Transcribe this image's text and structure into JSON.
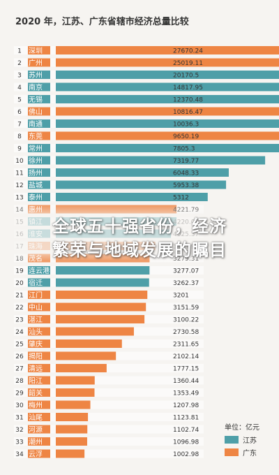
{
  "colors": {
    "jiangsu": "#4e9fa8",
    "guangdong": "#ee8544"
  },
  "banner": {
    "line1": "全球五十强省份，经济",
    "line2": "繁荣与地域发展的瞩目"
  },
  "chart_data": {
    "type": "bar",
    "orientation": "horizontal",
    "title": "2020 年，江苏、广东省辖市经济总量比较",
    "unit": "单位：亿元",
    "legend": [
      {
        "name": "江苏",
        "color": "#4e9fa8",
        "province": "jiangsu"
      },
      {
        "name": "广东",
        "color": "#ee8544",
        "province": "guangdong"
      }
    ],
    "legend_position": "bottom-right",
    "xlim": [
      0,
      40000
    ],
    "grid": false,
    "rows": [
      {
        "rank": "1",
        "city": "深圳",
        "value": 27670.24,
        "value_label": "27670.24",
        "province": "guangdong"
      },
      {
        "rank": "2",
        "city": "广州",
        "value": 25019.11,
        "value_label": "25019.11",
        "province": "guangdong"
      },
      {
        "rank": "3",
        "city": "苏州",
        "value": 20170.5,
        "value_label": "20170.5",
        "province": "jiangsu"
      },
      {
        "rank": "4",
        "city": "南京",
        "value": 14817.95,
        "value_label": "14817.95",
        "province": "jiangsu"
      },
      {
        "rank": "5",
        "city": "无锡",
        "value": 12370.48,
        "value_label": "12370.48",
        "province": "jiangsu"
      },
      {
        "rank": "6",
        "city": "佛山",
        "value": 10816.47,
        "value_label": "10816.47",
        "province": "guangdong"
      },
      {
        "rank": "7",
        "city": "南通",
        "value": 10036.3,
        "value_label": "10036.3",
        "province": "jiangsu"
      },
      {
        "rank": "8",
        "city": "东莞",
        "value": 9650.19,
        "value_label": "9650.19",
        "province": "guangdong"
      },
      {
        "rank": "9",
        "city": "常州",
        "value": 7805.3,
        "value_label": "7805.3",
        "province": "jiangsu"
      },
      {
        "rank": "10",
        "city": "徐州",
        "value": 7319.77,
        "value_label": "7319.77",
        "province": "jiangsu"
      },
      {
        "rank": "11",
        "city": "扬州",
        "value": 6048.33,
        "value_label": "6048.33",
        "province": "jiangsu"
      },
      {
        "rank": "12",
        "city": "盐城",
        "value": 5953.38,
        "value_label": "5953.38",
        "province": "jiangsu"
      },
      {
        "rank": "13",
        "city": "泰州",
        "value": 5312,
        "value_label": "5312",
        "province": "jiangsu"
      },
      {
        "rank": "14",
        "city": "惠州",
        "value": 4221.79,
        "value_label": "4221.79",
        "province": "guangdong"
      },
      {
        "rank": "15",
        "city": "镇江",
        "value": 4220.09,
        "value_label": "4220.09",
        "province": "jiangsu"
      },
      {
        "rank": "16",
        "city": "淮安",
        "value": 4025.37,
        "value_label": "4025.37",
        "province": "jiangsu"
      },
      {
        "rank": "17",
        "city": "珠海",
        "value": 3481.94,
        "value_label": "3481.94",
        "province": "guangdong"
      },
      {
        "rank": "18",
        "city": "茂名",
        "value": 3279.31,
        "value_label": "3279.31",
        "province": "guangdong"
      },
      {
        "rank": "19",
        "city": "连云港",
        "value": 3277.07,
        "value_label": "3277.07",
        "province": "jiangsu"
      },
      {
        "rank": "20",
        "city": "宿迁",
        "value": 3262.37,
        "value_label": "3262.37",
        "province": "jiangsu"
      },
      {
        "rank": "21",
        "city": "江门",
        "value": 3201,
        "value_label": "3201",
        "province": "guangdong"
      },
      {
        "rank": "22",
        "city": "中山",
        "value": 3151.59,
        "value_label": "3151.59",
        "province": "guangdong"
      },
      {
        "rank": "23",
        "city": "湛江",
        "value": 3100.22,
        "value_label": "3100.22",
        "province": "guangdong"
      },
      {
        "rank": "24",
        "city": "汕头",
        "value": 2730.58,
        "value_label": "2730.58",
        "province": "guangdong"
      },
      {
        "rank": "25",
        "city": "肇庆",
        "value": 2311.65,
        "value_label": "2311.65",
        "province": "guangdong"
      },
      {
        "rank": "26",
        "city": "揭阳",
        "value": 2102.14,
        "value_label": "2102.14",
        "province": "guangdong"
      },
      {
        "rank": "27",
        "city": "清远",
        "value": 1777.15,
        "value_label": "1777.15",
        "province": "guangdong"
      },
      {
        "rank": "28",
        "city": "阳江",
        "value": 1360.44,
        "value_label": "1360.44",
        "province": "guangdong"
      },
      {
        "rank": "29",
        "city": "韶关",
        "value": 1353.49,
        "value_label": "1353.49",
        "province": "guangdong"
      },
      {
        "rank": "30",
        "city": "梅州",
        "value": 1207.98,
        "value_label": "1207.98",
        "province": "guangdong"
      },
      {
        "rank": "31",
        "city": "汕尾",
        "value": 1123.81,
        "value_label": "1123.81",
        "province": "guangdong"
      },
      {
        "rank": "32",
        "city": "河源",
        "value": 1102.74,
        "value_label": "1102.74",
        "province": "guangdong"
      },
      {
        "rank": "33",
        "city": "潮州",
        "value": 1096.98,
        "value_label": "1096.98",
        "province": "guangdong"
      },
      {
        "rank": "34",
        "city": "云浮",
        "value": 1002.98,
        "value_label": "1002.98",
        "province": "guangdong"
      }
    ]
  }
}
